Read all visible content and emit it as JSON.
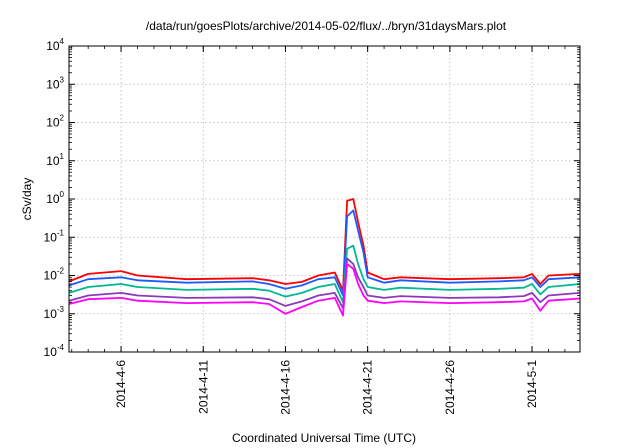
{
  "chart_data": {
    "type": "line",
    "title": "/data/run/goesPlots/archive/2014-05-02/flux/../bryn/31daysMars.plot",
    "xlabel": "Coordinated Universal Time (UTC)",
    "ylabel": "cSv/day",
    "x_type": "date",
    "xlim": [
      "2014-04-02T20:00",
      "2014-05-03T22:00"
    ],
    "ylim": [
      0.0001,
      10000
    ],
    "y_scale": "log",
    "y_ticks": [
      {
        "value": 0.0001,
        "base": "10",
        "exp": "-4"
      },
      {
        "value": 0.001,
        "base": "10",
        "exp": "-3"
      },
      {
        "value": 0.01,
        "base": "10",
        "exp": "-2"
      },
      {
        "value": 0.1,
        "base": "10",
        "exp": "-1"
      },
      {
        "value": 1,
        "base": "10",
        "exp": "0"
      },
      {
        "value": 10,
        "base": "10",
        "exp": "1"
      },
      {
        "value": 100,
        "base": "10",
        "exp": "2"
      },
      {
        "value": 1000,
        "base": "10",
        "exp": "3"
      },
      {
        "value": 10000,
        "base": "10",
        "exp": "4"
      }
    ],
    "x_ticks": [
      "2014-4-6",
      "2014-4-11",
      "2014-4-16",
      "2014-4-21",
      "2014-4-26",
      "2014-5-1"
    ],
    "x_tick_values": [
      "2014-04-06",
      "2014-04-11",
      "2014-04-16",
      "2014-04-21",
      "2014-04-26",
      "2014-05-01"
    ],
    "grid": true,
    "x": [
      "2014-04-02T20:00",
      "2014-04-04T00:00",
      "2014-04-06T00:00",
      "2014-04-07T00:00",
      "2014-04-10T00:00",
      "2014-04-14T00:00",
      "2014-04-15T00:00",
      "2014-04-16T00:00",
      "2014-04-17T00:00",
      "2014-04-18T00:00",
      "2014-04-19T00:00",
      "2014-04-19T12:00",
      "2014-04-19T18:00",
      "2014-04-20T03:00",
      "2014-04-20T10:00",
      "2014-04-20T18:00",
      "2014-04-21T00:00",
      "2014-04-22T00:00",
      "2014-04-23T00:00",
      "2014-04-26T00:00",
      "2014-04-29T00:00",
      "2014-04-30T12:00",
      "2014-05-01T00:00",
      "2014-05-01T12:00",
      "2014-05-02T00:00",
      "2014-05-03T22:00"
    ],
    "series": [
      {
        "color": "#ff0000",
        "values": [
          0.007,
          0.011,
          0.013,
          0.01,
          0.008,
          0.0085,
          0.0075,
          0.006,
          0.0068,
          0.01,
          0.012,
          0.004,
          0.9,
          1.0,
          0.25,
          0.06,
          0.012,
          0.008,
          0.009,
          0.008,
          0.0085,
          0.009,
          0.011,
          0.006,
          0.01,
          0.011
        ]
      },
      {
        "color": "#1a5aff",
        "values": [
          0.0055,
          0.008,
          0.009,
          0.0075,
          0.0065,
          0.007,
          0.006,
          0.0045,
          0.0055,
          0.008,
          0.009,
          0.003,
          0.35,
          0.5,
          0.15,
          0.04,
          0.009,
          0.0065,
          0.0075,
          0.0065,
          0.007,
          0.0075,
          0.009,
          0.005,
          0.008,
          0.009
        ]
      },
      {
        "color": "#00b894",
        "values": [
          0.0035,
          0.005,
          0.006,
          0.005,
          0.0042,
          0.0045,
          0.004,
          0.0028,
          0.0035,
          0.005,
          0.006,
          0.002,
          0.05,
          0.06,
          0.02,
          0.008,
          0.005,
          0.0042,
          0.0048,
          0.0042,
          0.0045,
          0.0048,
          0.006,
          0.0032,
          0.005,
          0.006
        ]
      },
      {
        "color": "#8a3ab9",
        "values": [
          0.0022,
          0.003,
          0.0035,
          0.003,
          0.0026,
          0.0027,
          0.0024,
          0.0016,
          0.0021,
          0.003,
          0.0035,
          0.0014,
          0.028,
          0.02,
          0.009,
          0.005,
          0.003,
          0.0026,
          0.0029,
          0.0026,
          0.0027,
          0.0029,
          0.0035,
          0.002,
          0.003,
          0.0035
        ]
      },
      {
        "color": "#ff00ff",
        "values": [
          0.0018,
          0.0024,
          0.0026,
          0.0022,
          0.0019,
          0.002,
          0.0018,
          0.001,
          0.0015,
          0.0022,
          0.0026,
          0.0009,
          0.02,
          0.015,
          0.006,
          0.003,
          0.0022,
          0.0019,
          0.0021,
          0.0019,
          0.002,
          0.0021,
          0.0025,
          0.0012,
          0.0022,
          0.0025
        ]
      }
    ]
  }
}
